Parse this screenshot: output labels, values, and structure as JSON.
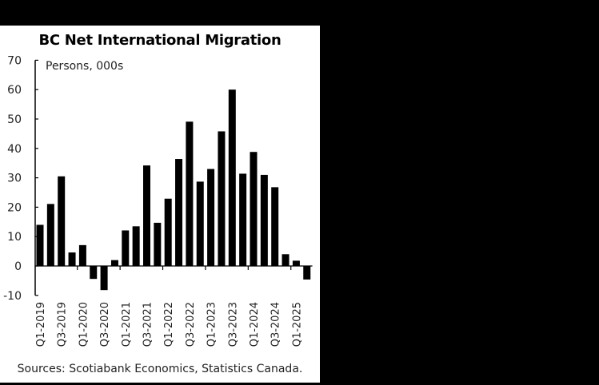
{
  "chart_data": {
    "type": "bar",
    "title": "BC Net International Migration",
    "subtitle": "Persons, 000s",
    "xlabel": "",
    "ylabel": "Persons, 000s",
    "ylim": [
      -10,
      70
    ],
    "yticks": [
      70,
      60,
      50,
      40,
      30,
      20,
      10,
      0,
      -10
    ],
    "grid": false,
    "legend": null,
    "categories": [
      "Q1-2019",
      "Q2-2019",
      "Q3-2019",
      "Q4-2019",
      "Q1-2020",
      "Q2-2020",
      "Q3-2020",
      "Q4-2020",
      "Q1-2021",
      "Q2-2021",
      "Q3-2021",
      "Q4-2021",
      "Q1-2022",
      "Q2-2022",
      "Q3-2022",
      "Q4-2022",
      "Q1-2023",
      "Q2-2023",
      "Q3-2023",
      "Q4-2023",
      "Q1-2024",
      "Q2-2024",
      "Q3-2024",
      "Q4-2024",
      "Q1-2025",
      "Q2-2025"
    ],
    "xtick_labels": [
      "Q1-2019",
      "Q3-2019",
      "Q1-2020",
      "Q3-2020",
      "Q1-2021",
      "Q3-2021",
      "Q1-2022",
      "Q3-2022",
      "Q1-2023",
      "Q3-2023",
      "Q1-2024",
      "Q3-2024",
      "Q1-2025"
    ],
    "values": [
      14.0,
      21.1,
      30.5,
      4.6,
      7.1,
      -4.4,
      -8.2,
      2.0,
      12.1,
      13.5,
      34.2,
      14.7,
      22.9,
      36.4,
      49.1,
      28.7,
      33.0,
      45.8,
      60.0,
      31.4,
      38.8,
      31.0,
      26.8,
      4.0,
      1.8,
      -4.6
    ],
    "bar_color": "#000000",
    "source": "Sources: Scotiabank Economics, Statistics Canada."
  }
}
